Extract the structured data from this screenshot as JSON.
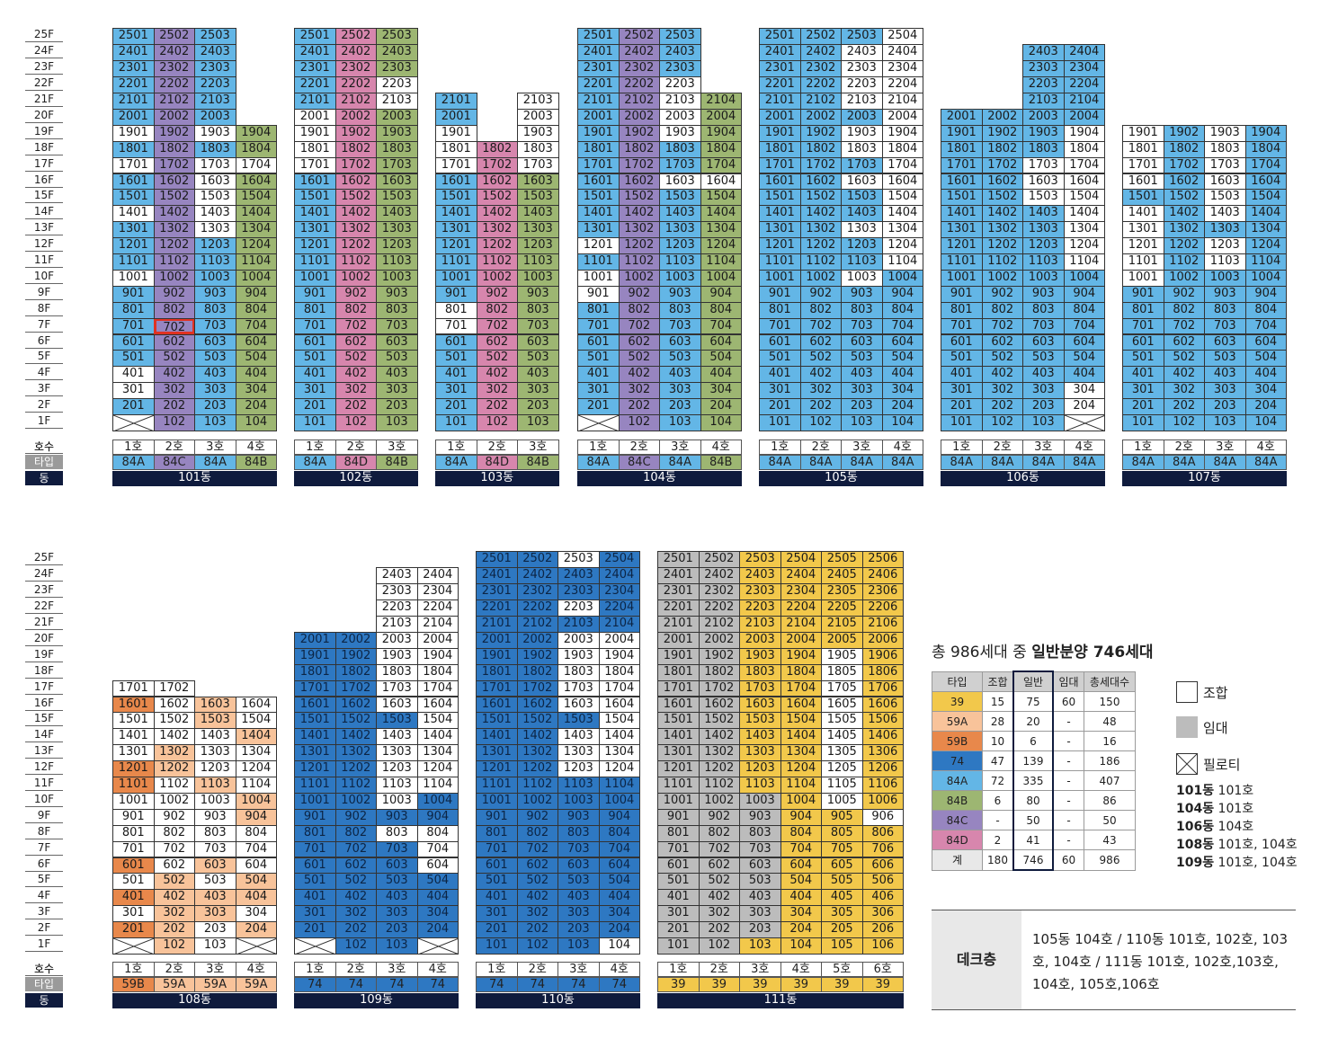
{
  "colors": {
    "84A": "#63b6e6",
    "84B": "#9db672",
    "84C": "#9785c0",
    "84D": "#d786ad",
    "74": "#2e78c2",
    "39": "#f2c84b",
    "59A": "#f8c39a",
    "59B": "#e8884b",
    "union": "#ffffff",
    "rental": "#bcbcbc",
    "highlight": "#e03222"
  },
  "floors": [
    "25F",
    "24F",
    "23F",
    "22F",
    "21F",
    "20F",
    "19F",
    "18F",
    "17F",
    "16F",
    "15F",
    "14F",
    "13F",
    "12F",
    "11F",
    "10F",
    "9F",
    "8F",
    "7F",
    "6F",
    "5F",
    "4F",
    "3F",
    "2F",
    "1F"
  ],
  "hosu_label": "호수",
  "type_label": "타입",
  "dong_label": "동",
  "buildings": [
    {
      "name": "101동",
      "units": [
        "1호",
        "2호",
        "3호",
        "4호"
      ],
      "types": [
        "84A",
        "84C",
        "84A",
        "84B"
      ],
      "type_text": [
        "84A",
        "84C",
        "84A",
        "84B"
      ],
      "floors": [
        25,
        25,
        25,
        19
      ],
      "pilotis": {
        "1": [
          0
        ]
      },
      "union": {
        "1": [
          [
            3,
            4,
            10,
            14,
            17,
            19
          ],
          [],
          [
            13,
            14,
            15,
            16,
            17,
            19
          ],
          [
            17
          ]
        ]
      },
      "highlight": [
        7,
        1
      ]
    },
    {
      "name": "102동",
      "units": [
        "1호",
        "2호",
        "3호"
      ],
      "types": [
        "84A",
        "84D",
        "84B"
      ],
      "type_text": [
        "84A",
        "84D",
        "84B"
      ],
      "floors": [
        25,
        25,
        25
      ],
      "pilotis": {},
      "union": {
        "1": [
          [
            20,
            19,
            18,
            17
          ],
          [],
          [
            22,
            21
          ]
        ],
        "2": [
          [],
          [
            22,
            20,
            19
          ],
          []
        ]
      }
    },
    {
      "name": "103동",
      "units": [
        "1호",
        "2호",
        "3호"
      ],
      "types": [
        "84A",
        "84D",
        "84B"
      ],
      "type_text": [
        "84A",
        "84D",
        "84B"
      ],
      "floors": [
        21,
        18,
        21
      ],
      "pilotis": {},
      "units_absent": {
        "2": [
          19,
          20,
          21
        ]
      },
      "union": {
        "1": [
          [
            19,
            18,
            17,
            8,
            7
          ],
          [],
          [
            21,
            20,
            19,
            18,
            17
          ]
        ]
      }
    },
    {
      "name": "104동",
      "units": [
        "1호",
        "2호",
        "3호",
        "4호"
      ],
      "types": [
        "84A",
        "84C",
        "84A",
        "84B"
      ],
      "type_text": [
        "84A",
        "84C",
        "84A",
        "84B"
      ],
      "floors": [
        25,
        25,
        25,
        21
      ],
      "pilotis": {
        "1": [
          0
        ]
      },
      "union": {
        "1": [
          [
            12,
            10,
            9
          ],
          [],
          [
            22,
            21,
            20,
            19,
            16
          ],
          [
            16
          ]
        ]
      }
    },
    {
      "name": "105동",
      "units": [
        "1호",
        "2호",
        "3호",
        "4호"
      ],
      "types": [
        "84A",
        "84A",
        "84A",
        "84A"
      ],
      "type_text": [
        "84A",
        "84A",
        "84A",
        "84A"
      ],
      "floors": [
        25,
        25,
        25,
        25
      ],
      "pilotis": {},
      "union": {
        "1": [
          [],
          [],
          [
            24,
            23,
            22,
            21,
            19,
            18,
            16,
            13,
            10
          ],
          [
            25,
            24,
            23,
            22,
            21,
            20,
            19,
            18,
            17,
            16,
            15,
            14,
            13,
            12,
            11
          ]
        ],
        "2": [
          [],
          [],
          [],
          []
        ]
      }
    },
    {
      "name": "106동",
      "units": [
        "1호",
        "2호",
        "3호",
        "4호"
      ],
      "types": [
        "84A",
        "84A",
        "84A",
        "84A"
      ],
      "type_text": [
        "84A",
        "84A",
        "84A",
        "84A"
      ],
      "floors": [
        20,
        20,
        24,
        24
      ],
      "pilotis": {
        "4": [
          0
        ]
      },
      "union": {
        "1": [
          [],
          [],
          [
            17,
            16,
            15
          ],
          [
            19,
            18,
            17,
            16,
            15,
            14,
            13,
            12,
            11,
            3,
            2
          ]
        ]
      }
    },
    {
      "name": "107동",
      "units": [
        "1호",
        "2호",
        "3호",
        "4호"
      ],
      "types": [
        "84A",
        "84A",
        "84A",
        "84A"
      ],
      "type_text": [
        "84A",
        "84A",
        "84A",
        "84A"
      ],
      "floors": [
        19,
        19,
        19,
        19
      ],
      "pilotis": {},
      "union": {
        "1": [
          [
            19,
            18,
            17,
            16,
            14,
            13,
            12,
            11,
            10
          ],
          [],
          [
            19,
            18,
            17,
            16,
            15,
            14,
            12,
            11
          ],
          []
        ]
      }
    },
    {
      "name": "108동",
      "units": [
        "1호",
        "2호",
        "3호",
        "4호"
      ],
      "types": [
        "59B",
        "59A",
        "59A",
        "59A"
      ],
      "type_text": [
        "59B",
        "59A",
        "59A",
        "59A"
      ],
      "floors": [
        17,
        17,
        16,
        16
      ],
      "pilotis": {
        "1": [
          0
        ],
        "4": [
          0
        ]
      },
      "colored": {
        "1": [
          16,
          12,
          11,
          6,
          4,
          2
        ],
        "2": [
          13,
          12,
          5,
          4,
          3,
          2,
          1
        ],
        "3": [
          16,
          15,
          11,
          6,
          4,
          3
        ],
        "4": [
          14,
          10,
          9,
          5,
          4,
          2
        ]
      }
    },
    {
      "name": "109동",
      "units": [
        "1호",
        "2호",
        "3호",
        "4호"
      ],
      "types": [
        "74",
        "74",
        "74",
        "74"
      ],
      "type_text": [
        "74",
        "74",
        "74",
        "74"
      ],
      "floors": [
        20,
        20,
        24,
        24
      ],
      "pilotis": {
        "1": [
          0
        ],
        "4": [
          0
        ]
      },
      "whites": {
        "3": [
          24,
          23,
          22,
          21,
          20,
          19,
          18,
          17,
          16,
          14,
          13,
          12,
          11,
          10,
          8
        ],
        "4": [
          24,
          23,
          22,
          21,
          20,
          19,
          18,
          17,
          16,
          15,
          14,
          13,
          12,
          11,
          8,
          7,
          6
        ]
      }
    },
    {
      "name": "110동",
      "units": [
        "1호",
        "2호",
        "3호",
        "4호"
      ],
      "types": [
        "74",
        "74",
        "74",
        "74"
      ],
      "type_text": [
        "74",
        "74",
        "74",
        "74"
      ],
      "floors": [
        25,
        25,
        25,
        25
      ],
      "pilotis": {},
      "whites": {
        "3": [
          25,
          22,
          20,
          19,
          18,
          17,
          16,
          14,
          13,
          12
        ],
        "4": [
          20,
          19,
          18,
          17,
          16,
          15,
          14,
          13,
          12,
          1
        ]
      }
    },
    {
      "name": "111동",
      "units": [
        "1호",
        "2호",
        "3호",
        "4호",
        "5호",
        "6호"
      ],
      "types": [
        "39",
        "39",
        "39",
        "39",
        "39",
        "39"
      ],
      "type_text": [
        "39",
        "39",
        "39",
        "39",
        "39",
        "39"
      ],
      "floors": [
        25,
        25,
        25,
        25,
        25,
        25
      ]
    }
  ],
  "summary": {
    "prefix": "총 986세대 중 ",
    "bold": "일반분양 746세대"
  },
  "table": {
    "headers": [
      "타입",
      "조합",
      "일반",
      "임대",
      "총세대수"
    ],
    "rows": [
      [
        "39",
        "15",
        "75",
        "60",
        "150"
      ],
      [
        "59A",
        "28",
        "20",
        "-",
        "48"
      ],
      [
        "59B",
        "10",
        "6",
        "-",
        "16"
      ],
      [
        "74",
        "47",
        "139",
        "-",
        "186"
      ],
      [
        "84A",
        "72",
        "335",
        "-",
        "407"
      ],
      [
        "84B",
        "6",
        "80",
        "-",
        "86"
      ],
      [
        "84C",
        "-",
        "50",
        "-",
        "50"
      ],
      [
        "84D",
        "2",
        "41",
        "-",
        "43"
      ],
      [
        "계",
        "180",
        "746",
        "60",
        "986"
      ]
    ]
  },
  "legend": {
    "union": "조합",
    "rental": "임대",
    "pilotis": "필로티"
  },
  "notes": [
    {
      "b": "101동",
      "t": " 101호"
    },
    {
      "b": "104동",
      "t": " 101호"
    },
    {
      "b": "106동",
      "t": " 104호"
    },
    {
      "b": "108동",
      "t": " 101호, 104호"
    },
    {
      "b": "109동",
      "t": " 101호, 104호"
    }
  ],
  "deck": {
    "label": "데크층",
    "text": "105동 104호 / 110동 101호, 102호, 103호, 104호 / 111동 101호, 102호,103호, 104호, 105호,106호"
  }
}
